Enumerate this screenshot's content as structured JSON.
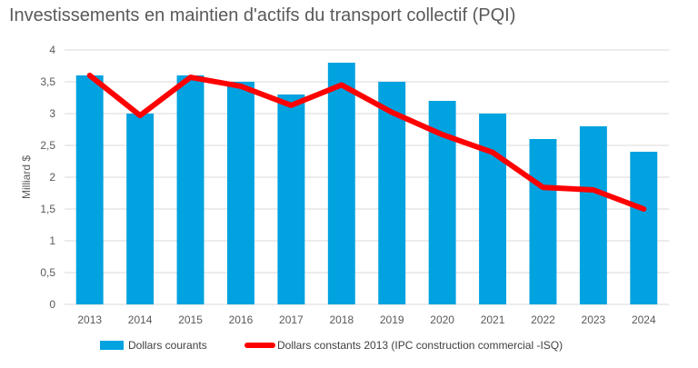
{
  "chart_data": {
    "type": "bar",
    "title": "Investissements en maintien d'actifs du transport collectif (PQI)",
    "ylabel": "Milliard $",
    "xlabel": "",
    "categories": [
      "2013",
      "2014",
      "2015",
      "2016",
      "2017",
      "2018",
      "2019",
      "2020",
      "2021",
      "2022",
      "2023",
      "2024"
    ],
    "ylim": [
      0,
      4
    ],
    "yticks": [
      "0",
      "0,5",
      "1",
      "1,5",
      "2",
      "2,5",
      "3",
      "3,5",
      "4"
    ],
    "series": [
      {
        "name": "Dollars courants",
        "type": "bar",
        "color": "#00A2E0",
        "values": [
          3.6,
          3.0,
          3.6,
          3.5,
          3.3,
          3.8,
          3.5,
          3.2,
          3.0,
          2.6,
          2.8,
          2.4
        ]
      },
      {
        "name": "Dollars constants 2013 (IPC construction commercial -ISQ)",
        "type": "line",
        "color": "#FF0000",
        "values": [
          3.6,
          2.97,
          3.57,
          3.43,
          3.13,
          3.45,
          3.02,
          2.67,
          2.39,
          1.84,
          1.8,
          1.5
        ]
      }
    ],
    "grid": true,
    "legend_position": "bottom"
  }
}
